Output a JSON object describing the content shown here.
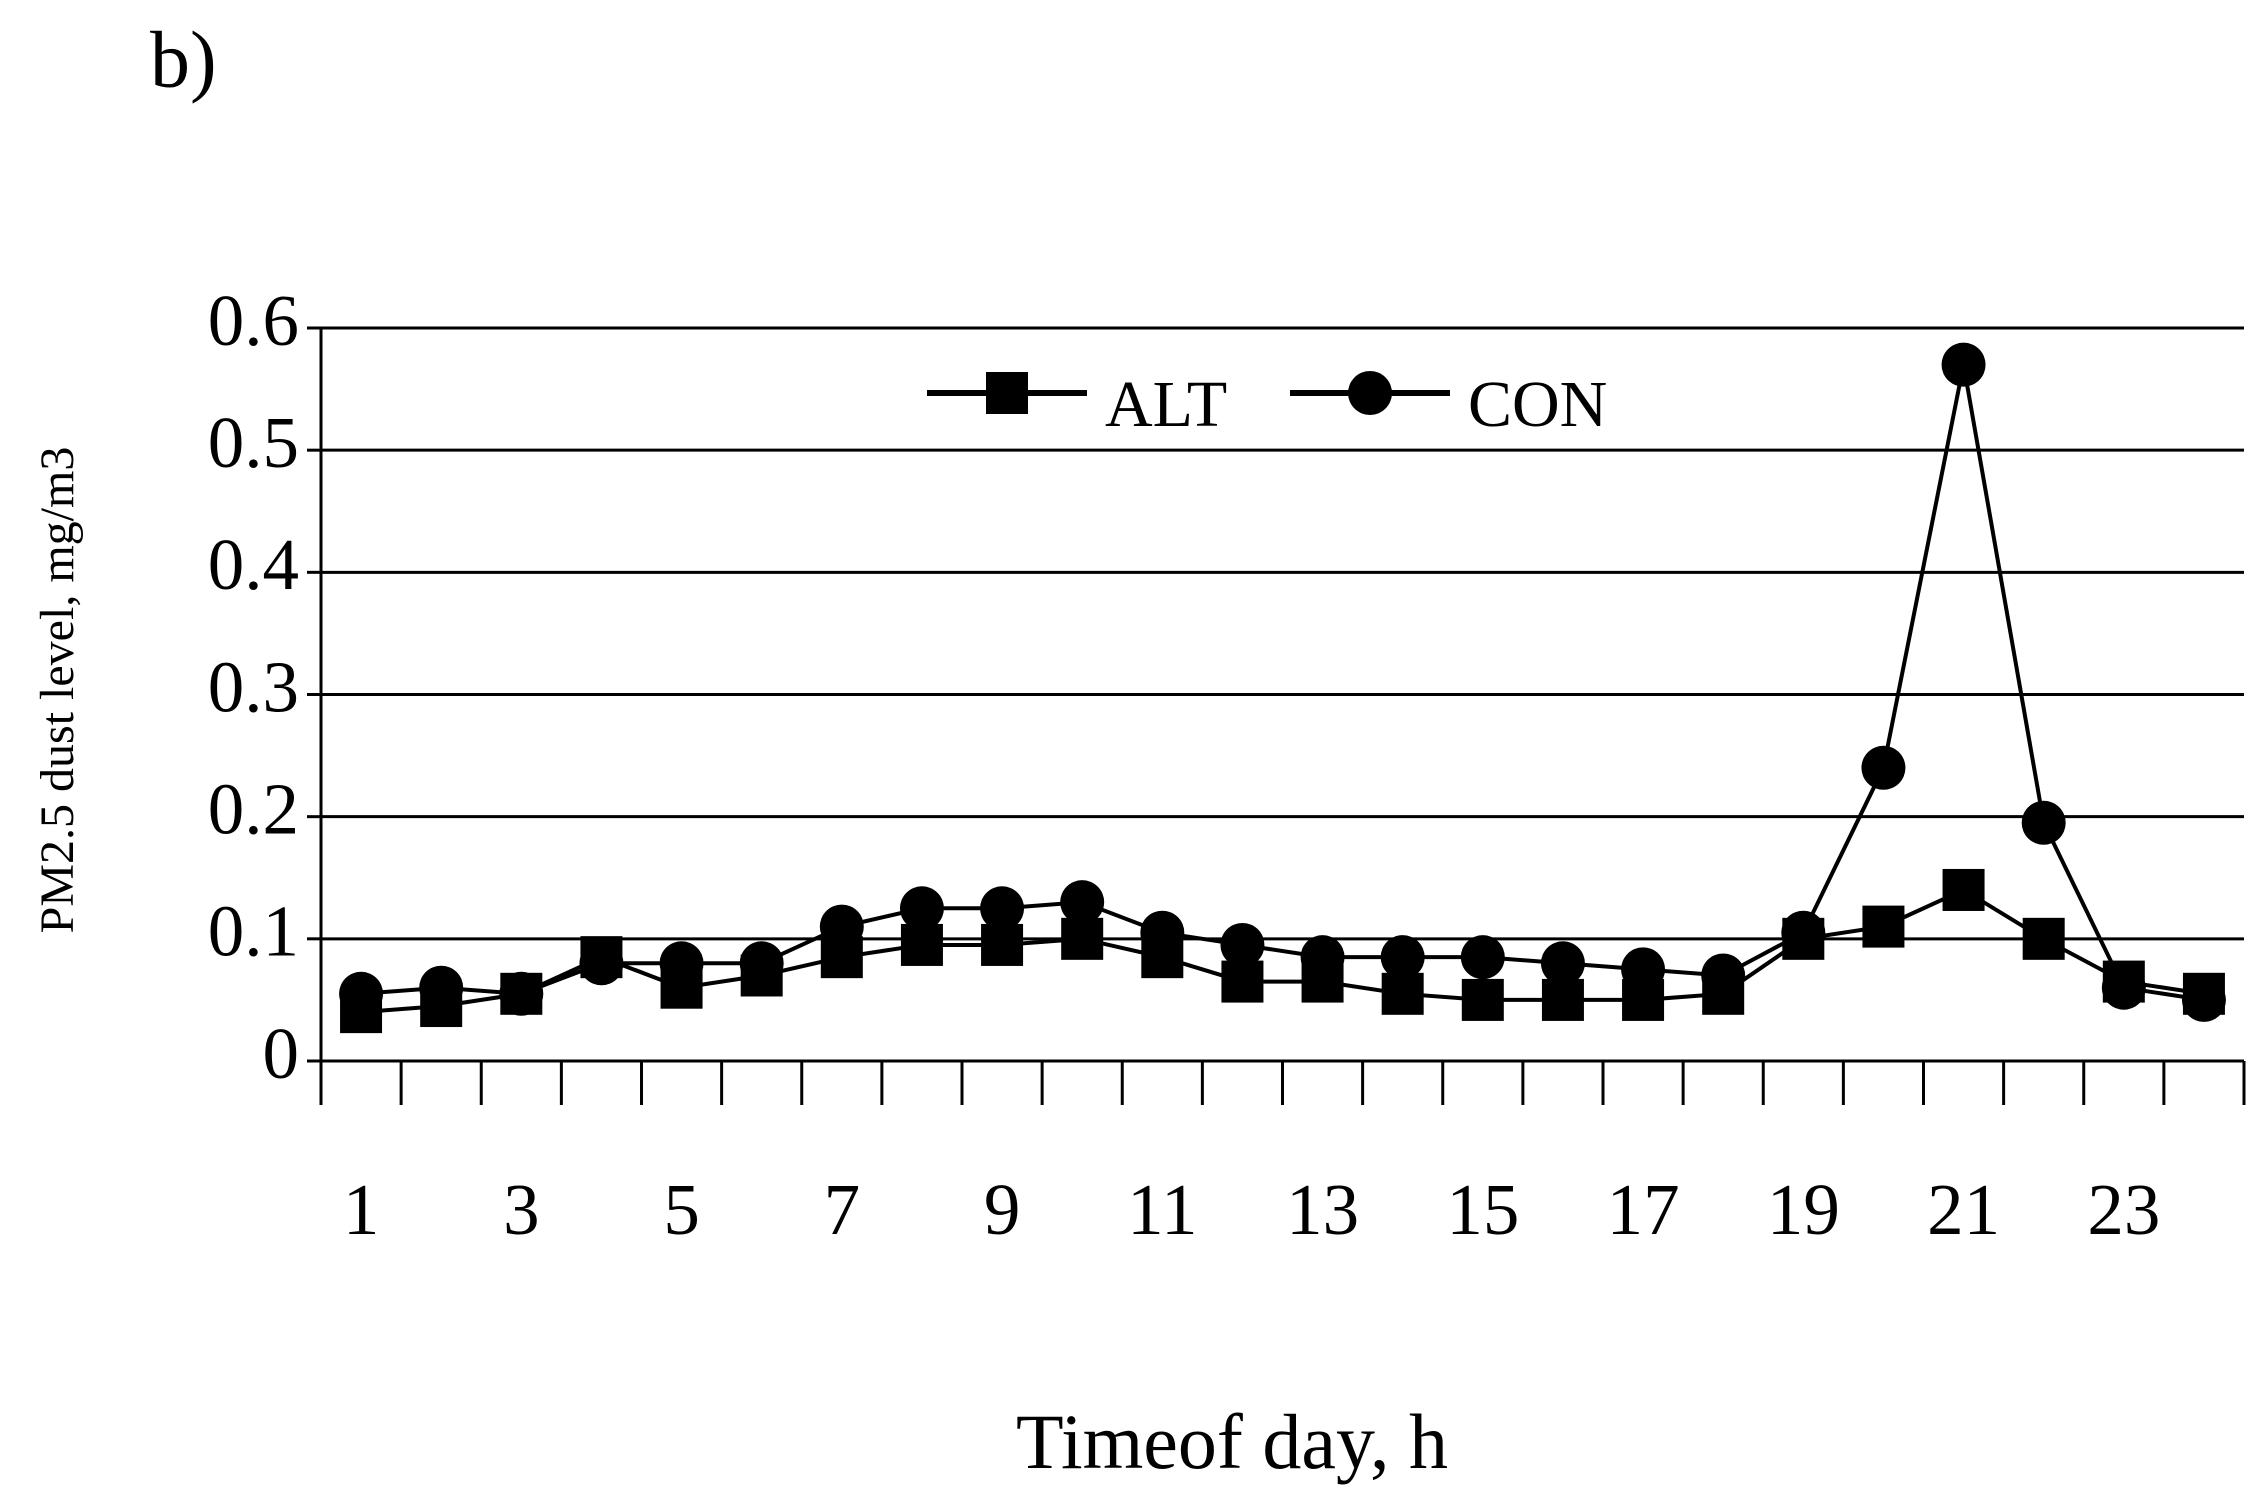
{
  "chart_data": {
    "type": "line",
    "title": "b)",
    "y_label": "PM2.5 dust level, mg/m3",
    "x_label": "Timeof day, h",
    "categories": [
      "1",
      null,
      "3",
      null,
      "5",
      null,
      "7",
      null,
      "9",
      null,
      "11",
      null,
      "13",
      null,
      "15",
      null,
      "17",
      null,
      "19",
      null,
      "21",
      null,
      "23",
      null
    ],
    "series": [
      {
        "name": "ALT",
        "color": "#000000",
        "marker": "square",
        "values": [
          0.04,
          0.045,
          0.055,
          0.085,
          0.06,
          0.07,
          0.085,
          0.095,
          0.095,
          0.1,
          0.085,
          0.065,
          0.065,
          0.055,
          0.05,
          0.05,
          0.05,
          0.055,
          0.1,
          0.11,
          0.14,
          0.1,
          0.065,
          0.055
        ]
      },
      {
        "name": "CON",
        "color": "#000000",
        "marker": "circle",
        "values": [
          0.055,
          0.06,
          0.055,
          0.08,
          0.08,
          0.08,
          0.11,
          0.125,
          0.125,
          0.13,
          0.105,
          0.095,
          0.085,
          0.085,
          0.085,
          0.08,
          0.075,
          0.07,
          0.105,
          0.24,
          0.57,
          0.195,
          0.06,
          0.05
        ]
      }
    ],
    "ylim": [
      0,
      0.6
    ],
    "yticks": [
      0,
      0.1,
      0.2,
      0.3,
      0.4,
      0.5,
      0.6
    ],
    "grid": true,
    "legend": "top"
  }
}
